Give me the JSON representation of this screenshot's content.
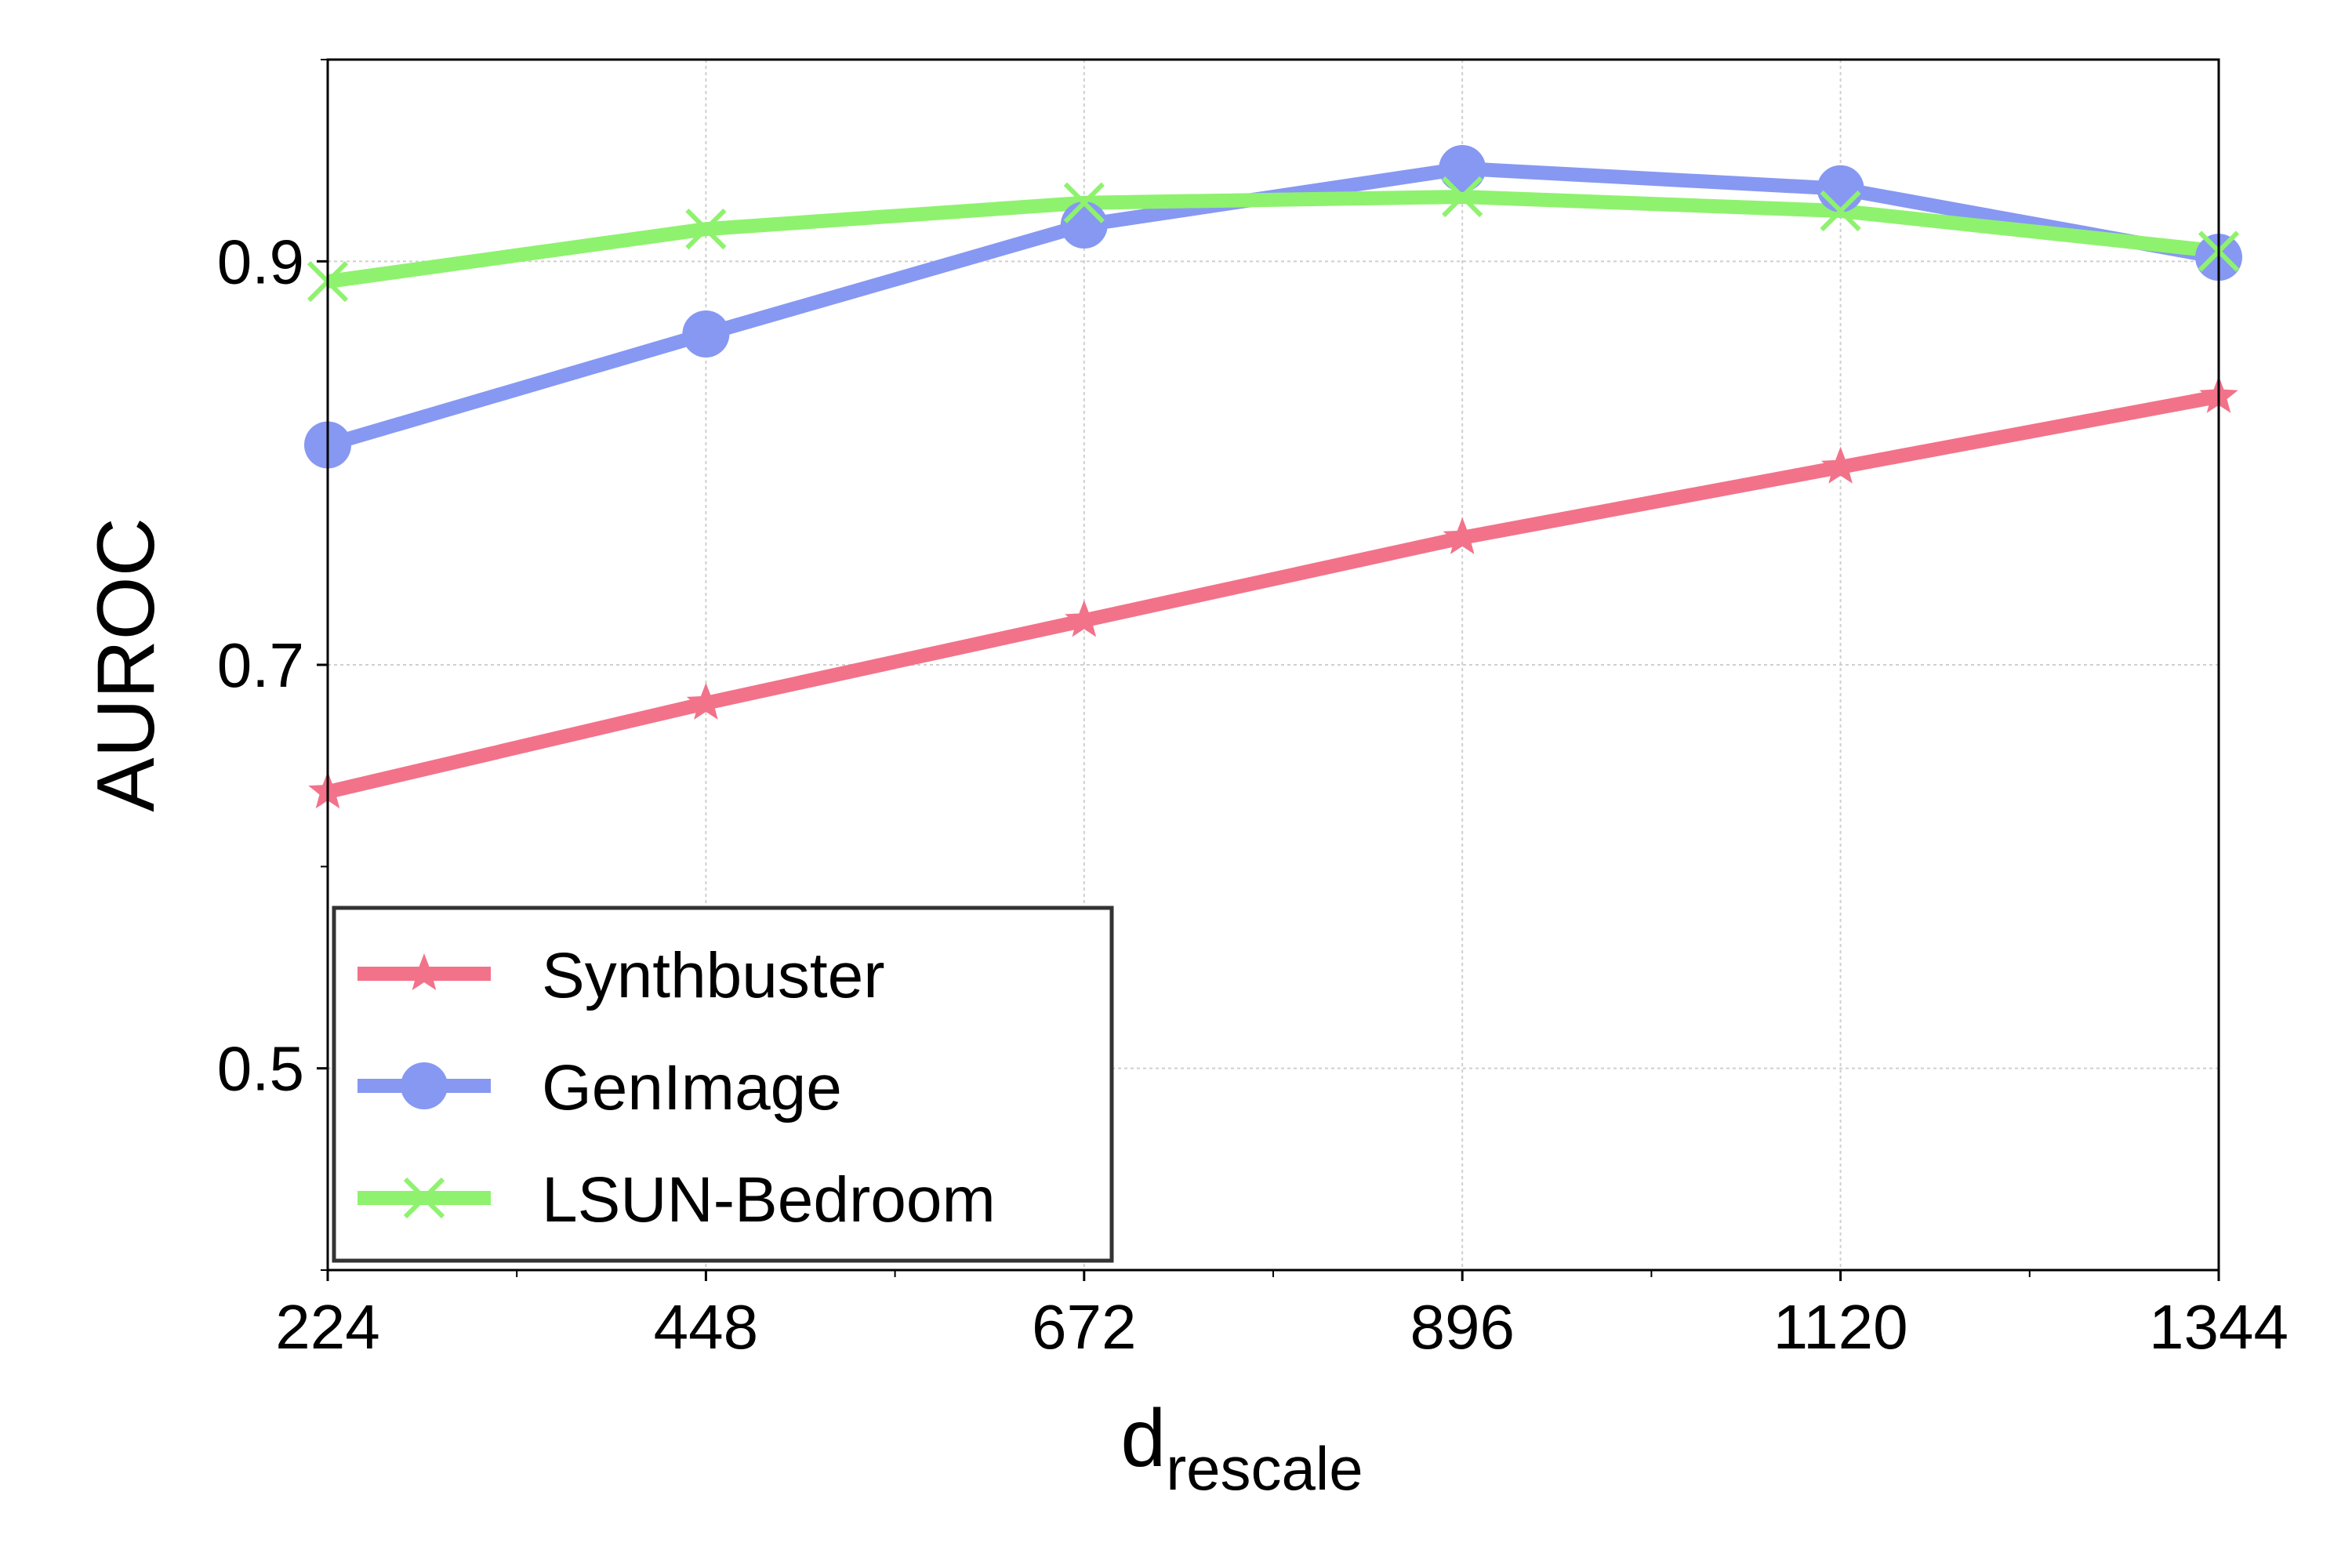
{
  "chart_data": {
    "type": "line",
    "title": "",
    "xlabel": "d",
    "xlabel_subscript": "rescale",
    "ylabel": "AUROC",
    "x": [
      224,
      448,
      672,
      896,
      1120,
      1344
    ],
    "x_tick_labels": [
      "224",
      "448",
      "672",
      "896",
      "1120",
      "1344"
    ],
    "y_ticks": [
      0.5,
      0.7,
      0.9
    ],
    "y_tick_labels": [
      "0.5",
      "0.7",
      "0.9"
    ],
    "xlim": [
      224,
      1344
    ],
    "ylim": [
      0.4,
      1.0
    ],
    "grid": true,
    "legend_position": "lower-left",
    "series": [
      {
        "name": "Synthbuster",
        "color": "#f2728a",
        "marker": "star",
        "values": [
          0.637,
          0.681,
          0.722,
          0.763,
          0.798,
          0.833
        ]
      },
      {
        "name": "GenImage",
        "color": "#8698f2",
        "marker": "circle",
        "values": [
          0.809,
          0.864,
          0.918,
          0.946,
          0.936,
          0.902
        ]
      },
      {
        "name": "LSUN-Bedroom",
        "color": "#8ef26e",
        "marker": "x",
        "values": [
          0.89,
          0.916,
          0.929,
          0.932,
          0.925,
          0.905
        ]
      }
    ]
  }
}
